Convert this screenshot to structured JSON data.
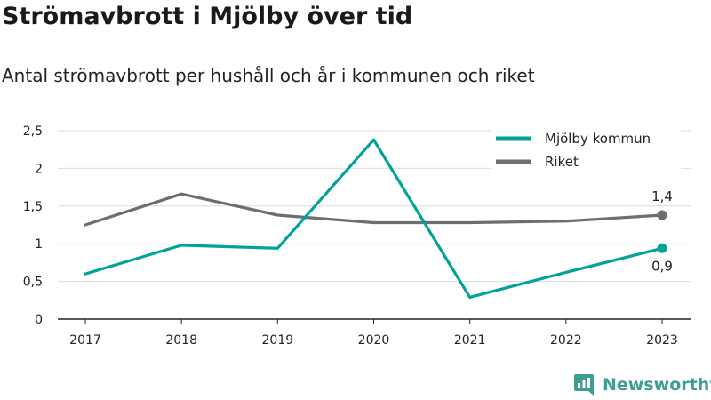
{
  "chart_data": {
    "type": "line",
    "title": "Strömavbrott i Mjölby över tid",
    "subtitle": "Antal strömavbrott per hushåll och år i kommunen och riket",
    "xlabel": "",
    "ylabel": "",
    "x": [
      "2017",
      "2018",
      "2019",
      "2020",
      "2021",
      "2022",
      "2023"
    ],
    "ylim": [
      0,
      2.5
    ],
    "yticks": [
      0,
      0.5,
      1,
      1.5,
      2,
      2.5
    ],
    "ytick_labels": [
      "0",
      "0,5",
      "1",
      "1,5",
      "2",
      "2,5"
    ],
    "grid": true,
    "legend": "top-right",
    "series": [
      {
        "name": "Mjölby kommun",
        "color": "#00a397",
        "values": [
          0.6,
          0.98,
          0.94,
          2.38,
          0.29,
          0.62,
          0.94
        ],
        "end_label": "0,9"
      },
      {
        "name": "Riket",
        "color": "#6d6d73",
        "values": [
          1.25,
          1.66,
          1.38,
          1.28,
          1.28,
          1.3,
          1.38
        ],
        "end_label": "1,4"
      }
    ]
  },
  "brand": {
    "name": "Newsworthy",
    "icon": "newsworthy-logo-icon",
    "color": "#3f9e93"
  }
}
